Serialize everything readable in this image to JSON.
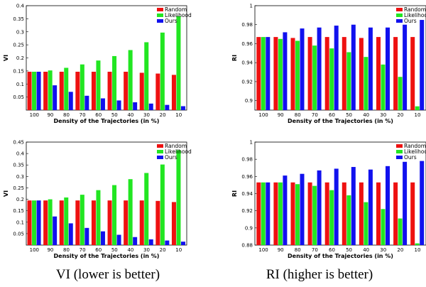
{
  "captions": [
    "VI (lower is better)",
    "RI (higher is better)"
  ],
  "chart_data": [
    {
      "type": "bar",
      "categories": [
        "100",
        "90",
        "80",
        "70",
        "60",
        "50",
        "40",
        "30",
        "20",
        "10"
      ],
      "xlabel": "Density of the Trajectories (in %)",
      "ylabel": "VI",
      "ylim": [
        0,
        0.4
      ],
      "yticks": [
        "0.05",
        "0.1",
        "0.15",
        "0.2",
        "0.25",
        "0.3",
        "0.35",
        "0.4"
      ],
      "legend_position": "top-right",
      "series": [
        {
          "name": "Random",
          "color": "#ee1111",
          "values": [
            0.147,
            0.147,
            0.147,
            0.147,
            0.147,
            0.147,
            0.147,
            0.143,
            0.14,
            0.135
          ]
        },
        {
          "name": "Likelihood",
          "color": "#22e622",
          "values": [
            0.147,
            0.152,
            0.162,
            0.175,
            0.19,
            0.207,
            0.23,
            0.26,
            0.297,
            0.36
          ]
        },
        {
          "name": "Ours",
          "color": "#1111ee",
          "values": [
            0.147,
            0.095,
            0.07,
            0.055,
            0.045,
            0.037,
            0.03,
            0.025,
            0.02,
            0.015
          ]
        }
      ]
    },
    {
      "type": "bar",
      "categories": [
        "100",
        "90",
        "80",
        "70",
        "60",
        "50",
        "40",
        "30",
        "20",
        "10"
      ],
      "xlabel": "Density of the Trajectories (in %)",
      "ylabel": "RI",
      "ylim": [
        0.89,
        1.0
      ],
      "yticks": [
        "0.9",
        "0.92",
        "0.94",
        "0.96",
        "0.98",
        "1"
      ],
      "legend_position": "top-right",
      "series": [
        {
          "name": "Random",
          "color": "#ee1111",
          "values": [
            0.967,
            0.967,
            0.966,
            0.967,
            0.967,
            0.967,
            0.966,
            0.967,
            0.967,
            0.967
          ]
        },
        {
          "name": "Likelihood",
          "color": "#22e622",
          "values": [
            0.967,
            0.965,
            0.963,
            0.958,
            0.955,
            0.951,
            0.946,
            0.938,
            0.925,
            0.894
          ]
        },
        {
          "name": "Ours",
          "color": "#1111ee",
          "values": [
            0.967,
            0.972,
            0.976,
            0.977,
            0.979,
            0.98,
            0.977,
            0.977,
            0.98,
            0.985
          ]
        }
      ]
    },
    {
      "type": "bar",
      "categories": [
        "100",
        "90",
        "80",
        "70",
        "60",
        "50",
        "40",
        "30",
        "20",
        "10"
      ],
      "xlabel": "Density of the Trajectories (in %)",
      "ylabel": "VI",
      "ylim": [
        0,
        0.45
      ],
      "yticks": [
        "0.05",
        "0.1",
        "0.15",
        "0.2",
        "0.25",
        "0.3",
        "0.35",
        "0.4",
        "0.45"
      ],
      "legend_position": "top-right",
      "series": [
        {
          "name": "Random",
          "color": "#ee1111",
          "values": [
            0.195,
            0.195,
            0.195,
            0.195,
            0.195,
            0.195,
            0.195,
            0.195,
            0.193,
            0.188
          ]
        },
        {
          "name": "Likelihood",
          "color": "#22e622",
          "values": [
            0.195,
            0.2,
            0.208,
            0.22,
            0.24,
            0.262,
            0.288,
            0.315,
            0.352,
            0.415
          ]
        },
        {
          "name": "Ours",
          "color": "#1111ee",
          "values": [
            0.195,
            0.125,
            0.095,
            0.075,
            0.06,
            0.045,
            0.035,
            0.025,
            0.02,
            0.015
          ]
        }
      ]
    },
    {
      "type": "bar",
      "categories": [
        "100",
        "90",
        "80",
        "70",
        "60",
        "50",
        "40",
        "30",
        "20",
        "10"
      ],
      "xlabel": "Density of the Trajectories (in %)",
      "ylabel": "RI",
      "ylim": [
        0.88,
        1.0
      ],
      "yticks": [
        "0.88",
        "0.9",
        "0.92",
        "0.94",
        "0.96",
        "0.98",
        "1"
      ],
      "legend_position": "top-right",
      "series": [
        {
          "name": "Random",
          "color": "#ee1111",
          "values": [
            0.953,
            0.953,
            0.953,
            0.953,
            0.953,
            0.953,
            0.953,
            0.953,
            0.953,
            0.953
          ]
        },
        {
          "name": "Likelihood",
          "color": "#22e622",
          "values": [
            0.953,
            0.953,
            0.951,
            0.949,
            0.944,
            0.938,
            0.93,
            0.922,
            0.911,
            0.882
          ]
        },
        {
          "name": "Ours",
          "color": "#1111ee",
          "values": [
            0.953,
            0.961,
            0.963,
            0.967,
            0.969,
            0.971,
            0.968,
            0.972,
            0.977,
            0.978
          ]
        }
      ]
    }
  ]
}
